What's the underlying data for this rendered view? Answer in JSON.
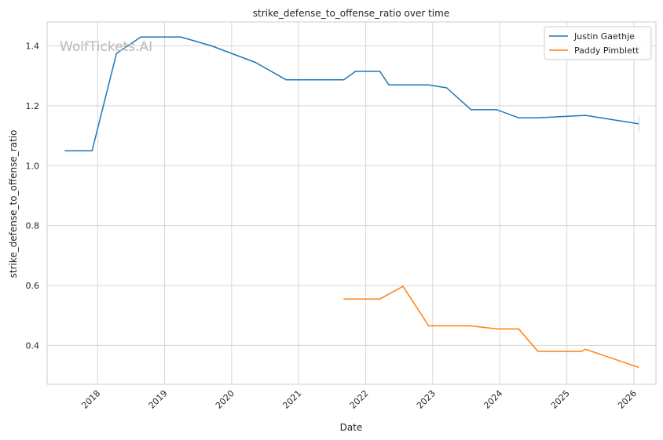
{
  "watermark": "WolfTickets.AI",
  "chart_data": {
    "type": "line",
    "title": "strike_defense_to_offense_ratio over time",
    "xlabel": "Date",
    "ylabel": "strike_defense_to_offense_ratio",
    "x_ticks": [
      "2018",
      "2019",
      "2020",
      "2021",
      "2022",
      "2023",
      "2024",
      "2025",
      "2026"
    ],
    "y_ticks": [
      "0.4",
      "0.6",
      "0.8",
      "1.0",
      "1.2",
      "1.4"
    ],
    "xlim": [
      "2017-04-01",
      "2026-05-01"
    ],
    "ylim": [
      0.27,
      1.48
    ],
    "grid": true,
    "legend_position": "top-right",
    "series": [
      {
        "name": "Justin Gaethje",
        "color": "#1f77b4",
        "points": [
          [
            "2017-07-08",
            1.05
          ],
          [
            "2017-12-02",
            1.05
          ],
          [
            "2018-04-14",
            1.375
          ],
          [
            "2018-08-25",
            1.43
          ],
          [
            "2019-03-30",
            1.43
          ],
          [
            "2019-09-14",
            1.4
          ],
          [
            "2020-05-09",
            1.345
          ],
          [
            "2020-10-24",
            1.287
          ],
          [
            "2021-09-04",
            1.287
          ],
          [
            "2021-11-06",
            1.315
          ],
          [
            "2022-03-19",
            1.315
          ],
          [
            "2022-05-07",
            1.27
          ],
          [
            "2022-12-10",
            1.27
          ],
          [
            "2023-03-18",
            1.26
          ],
          [
            "2023-07-29",
            1.187
          ],
          [
            "2023-12-16",
            1.187
          ],
          [
            "2024-04-13",
            1.16
          ],
          [
            "2024-07-20",
            1.16
          ],
          [
            "2025-04-12",
            1.168
          ],
          [
            "2026-01-24",
            1.14
          ]
        ]
      },
      {
        "name": "Paddy Pimblett",
        "color": "#ff7f0e",
        "points": [
          [
            "2021-09-04",
            0.555
          ],
          [
            "2022-03-19",
            0.555
          ],
          [
            "2022-07-23",
            0.597
          ],
          [
            "2022-12-10",
            0.465
          ],
          [
            "2023-07-29",
            0.465
          ],
          [
            "2023-12-16",
            0.455
          ],
          [
            "2024-04-13",
            0.455
          ],
          [
            "2024-07-27",
            0.38
          ],
          [
            "2025-03-22",
            0.38
          ],
          [
            "2025-04-12",
            0.387
          ],
          [
            "2026-01-24",
            0.327
          ]
        ]
      }
    ]
  }
}
